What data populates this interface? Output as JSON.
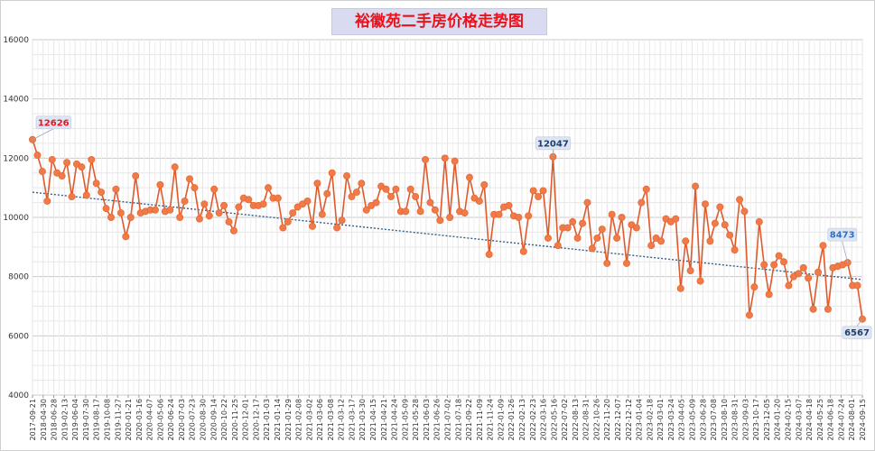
{
  "chart_data": {
    "type": "line",
    "title": "裕徽苑二手房价格走势图",
    "xlabel": "",
    "ylabel": "",
    "ylim": [
      4000,
      16000
    ],
    "yticks": [
      4000,
      6000,
      8000,
      10000,
      12000,
      14000,
      16000
    ],
    "grid": true,
    "legend": "none",
    "colors": {
      "line": "#e05a2b",
      "marker": "#f07a48",
      "trend": "#2f5f86",
      "label_bg": "#dfe6f3"
    },
    "x_tick_labels": [
      "2017-09-21",
      "2018-04-30",
      "2018-06-28",
      "2019-02-13",
      "2019-06-04",
      "2019-07-30",
      "2019-08-17",
      "2019-10-08",
      "2019-11-27",
      "2020-01-21",
      "2020-03-16",
      "2020-04-07",
      "2020-05-06",
      "2020-06-24",
      "2020-07-03",
      "2020-07-23",
      "2020-08-30",
      "2020-09-14",
      "2020-10-22",
      "2020-11-25",
      "2020-12-01",
      "2020-12-17",
      "2021-01-03",
      "2021-01-14",
      "2021-01-29",
      "2021-02-08",
      "2021-03-02",
      "2021-03-06",
      "2021-03-08",
      "2021-03-12",
      "2021-03-17",
      "2021-03-30",
      "2021-04-15",
      "2021-04-21",
      "2021-04-24",
      "2021-05-09",
      "2021-05-28",
      "2021-06-03",
      "2021-06-26",
      "2021-07-02",
      "2021-07-18",
      "2021-09-22",
      "2021-11-09",
      "2021-11-24",
      "2022-01-09",
      "2022-01-26",
      "2022-02-13",
      "2022-02-23",
      "2022-03-16",
      "2022-05-16",
      "2022-07-02",
      "2022-08-13",
      "2022-08-31",
      "2022-10-26",
      "2022-11-20",
      "2022-12-07",
      "2022-12-12",
      "2023-01-04",
      "2023-02-18",
      "2023-03-01",
      "2023-03-24",
      "2023-04-05",
      "2023-05-09",
      "2023-06-28",
      "2023-07-08",
      "2023-08-10",
      "2023-08-31",
      "2023-09-03",
      "2023-10-17",
      "2023-12-05",
      "2024-01-20",
      "2024-02-15",
      "2024-03-07",
      "2024-04-18",
      "2024-05-25",
      "2024-06-18",
      "2024-07-24",
      "2024-08-01",
      "2024-09-15"
    ],
    "series": [
      {
        "values": [
          12626,
          12100,
          11550,
          10550,
          11950,
          11500,
          11400,
          11850,
          10700,
          11800,
          11700,
          10750,
          11950,
          11150,
          10850,
          10300,
          10000,
          10950,
          10150,
          9350,
          10000,
          11400,
          10150,
          10200,
          10250,
          10250,
          11100,
          10200,
          10250,
          11700,
          10000,
          10550,
          11300,
          11000,
          9950,
          10450,
          10050,
          10950,
          10150,
          10400,
          9850,
          9550,
          10350,
          10650,
          10600,
          10400,
          10400,
          10450,
          11000,
          10650,
          10650,
          9650,
          9850,
          10150,
          10350,
          10450,
          10550,
          9700,
          11150,
          10100,
          10800,
          11500,
          9650,
          9900,
          11400,
          10700,
          10850,
          11150,
          10250,
          10400,
          10500,
          11050,
          10950,
          10700,
          10950,
          10200,
          10200,
          10950,
          10700,
          10200,
          11950,
          10500,
          10250,
          9900,
          12000,
          10000,
          11900,
          10200,
          10150,
          11350,
          10650,
          10550,
          11100,
          8750,
          10100,
          10100,
          10350,
          10400,
          10050,
          10000,
          8850,
          10050,
          10900,
          10700,
          10900,
          9300,
          12047,
          9050,
          9650,
          9650,
          9850,
          9300,
          9800,
          10500,
          8950,
          9300,
          9600,
          8450,
          10100,
          9300,
          10000,
          8450,
          9750,
          9650,
          10500,
          10950,
          9050,
          9300,
          9200,
          9950,
          9850,
          9950,
          7600,
          9200,
          8200,
          11050,
          7850,
          10450,
          9200,
          9800,
          10350,
          9750,
          9400,
          8900,
          10600,
          10200,
          6700,
          7650,
          9850,
          8400,
          7400,
          8400,
          8700,
          8500,
          7700,
          8000,
          8100,
          8300,
          7950,
          6900,
          8150,
          9050,
          6900,
          8300,
          8350,
          8400,
          8473,
          7700,
          7700,
          6567
        ]
      }
    ],
    "trendline": {
      "start": 10850,
      "end": 7900
    },
    "annotations": [
      {
        "text": "12626",
        "color": "#e8131c"
      },
      {
        "text": "12047",
        "color": "#1f3e6e"
      },
      {
        "text": "8473",
        "color": "#2e6fc8"
      },
      {
        "text": "6567",
        "color": "#1f3e6e"
      }
    ]
  }
}
